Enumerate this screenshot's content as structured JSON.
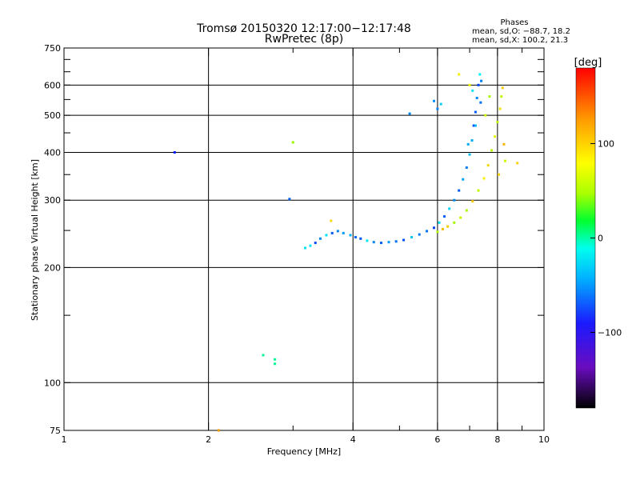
{
  "chart_data": {
    "type": "scatter",
    "title": "Tromsø 20150320 12:17:00−12:17:48",
    "subtitle": "RwPretec (8p)",
    "xlabel": "Frequency [MHz]",
    "ylabel": "Stationary phase Virtual Height [km]",
    "x_scale": "log",
    "y_scale": "log",
    "xlim": [
      1,
      10
    ],
    "ylim": [
      75,
      750
    ],
    "x_ticks": [
      1,
      2,
      4,
      6,
      8,
      10
    ],
    "x_tick_labels": [
      "1",
      "2",
      "4",
      "6",
      "8",
      "10"
    ],
    "y_ticks": [
      75,
      100,
      200,
      300,
      400,
      500,
      600,
      750
    ],
    "y_tick_labels": [
      "75",
      "100",
      "200",
      "300",
      "400",
      "500",
      "600",
      "750"
    ],
    "grid": true,
    "phase_stats": {
      "heading": "Phases",
      "o_line": "mean, sd,O: −88.7, 18.2",
      "x_line": "mean, sd,X: 100.2, 21.3"
    },
    "colorbar": {
      "label": "[deg]",
      "range": [
        -180,
        180
      ],
      "ticks": [
        100,
        0,
        -100
      ],
      "tick_labels": [
        "100",
        "0",
        "−100"
      ]
    },
    "series": [
      {
        "name": "O-mode trace (blue)",
        "phase_deg": -90,
        "points": [
          [
            3.18,
            225
          ],
          [
            3.26,
            228
          ],
          [
            3.34,
            232
          ],
          [
            3.42,
            238
          ],
          [
            3.52,
            243
          ],
          [
            3.62,
            246
          ],
          [
            3.72,
            249
          ],
          [
            3.82,
            246
          ],
          [
            3.95,
            243
          ],
          [
            4.05,
            240
          ],
          [
            4.15,
            238
          ],
          [
            4.28,
            235
          ],
          [
            4.42,
            233
          ],
          [
            4.58,
            232
          ],
          [
            4.75,
            233
          ],
          [
            4.92,
            234
          ],
          [
            5.1,
            236
          ],
          [
            5.3,
            240
          ],
          [
            5.5,
            244
          ],
          [
            5.7,
            249
          ],
          [
            5.9,
            254
          ],
          [
            6.05,
            262
          ],
          [
            6.2,
            272
          ],
          [
            6.35,
            285
          ],
          [
            6.5,
            300
          ],
          [
            6.65,
            318
          ],
          [
            6.78,
            340
          ],
          [
            6.9,
            365
          ],
          [
            7.0,
            395
          ],
          [
            7.08,
            430
          ],
          [
            7.14,
            470
          ],
          [
            7.2,
            510
          ],
          [
            7.25,
            555
          ],
          [
            7.3,
            600
          ],
          [
            7.35,
            640
          ],
          [
            7.4,
            615
          ],
          [
            7.2,
            470
          ],
          [
            6.95,
            420
          ],
          [
            7.1,
            580
          ],
          [
            7.38,
            540
          ],
          [
            5.25,
            505
          ],
          [
            5.9,
            545
          ],
          [
            6.0,
            520
          ],
          [
            6.1,
            535
          ]
        ]
      },
      {
        "name": "X-mode trace (yellow/orange)",
        "phase_deg": 100,
        "points": [
          [
            6.0,
            248
          ],
          [
            6.15,
            252
          ],
          [
            6.3,
            256
          ],
          [
            6.5,
            262
          ],
          [
            6.7,
            270
          ],
          [
            6.9,
            282
          ],
          [
            7.1,
            298
          ],
          [
            7.3,
            318
          ],
          [
            7.5,
            342
          ],
          [
            7.65,
            370
          ],
          [
            7.78,
            405
          ],
          [
            7.9,
            440
          ],
          [
            8.0,
            480
          ],
          [
            8.1,
            520
          ],
          [
            8.15,
            560
          ],
          [
            8.2,
            590
          ],
          [
            8.25,
            420
          ],
          [
            8.3,
            380
          ],
          [
            8.05,
            350
          ],
          [
            7.55,
            500
          ],
          [
            7.7,
            560
          ],
          [
            6.65,
            640
          ],
          [
            7.0,
            600
          ],
          [
            3.0,
            425
          ],
          [
            3.6,
            265
          ],
          [
            8.8,
            375
          ]
        ]
      }
    ],
    "isolated_points": [
      {
        "x": 2.6,
        "y": 118,
        "phase_deg": -30
      },
      {
        "x": 2.75,
        "y": 115,
        "phase_deg": -30
      },
      {
        "x": 2.75,
        "y": 112,
        "phase_deg": -30
      },
      {
        "x": 1.7,
        "y": 400,
        "phase_deg": -130
      },
      {
        "x": 2.95,
        "y": 302,
        "phase_deg": -110
      },
      {
        "x": 2.1,
        "y": 75,
        "phase_deg": 130
      }
    ]
  }
}
